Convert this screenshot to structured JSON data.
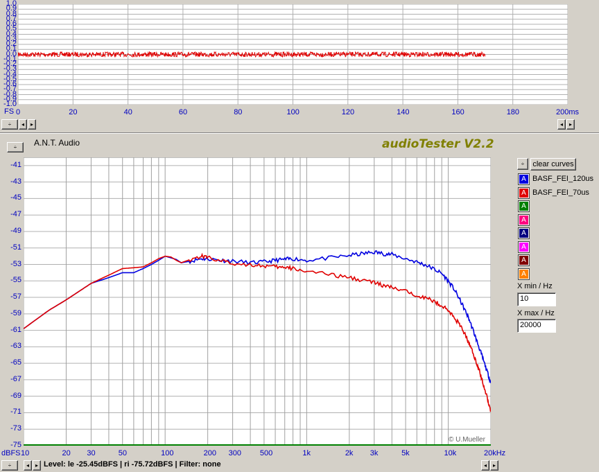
{
  "scope": {
    "y_ticks": [
      "1.0",
      "0.9",
      "0.8",
      "0.7",
      "0.6",
      "0.5",
      "0.4",
      "0.3",
      "0.2",
      "0.1",
      "0.0",
      "-0.1",
      "-0.2",
      "-0.3",
      "-0.4",
      "-0.5",
      "-0.6",
      "-0.7",
      "-0.8",
      "-0.9",
      "-1.0"
    ],
    "x_ticks": [
      "0",
      "20",
      "40",
      "60",
      "80",
      "100",
      "120",
      "140",
      "160",
      "180"
    ],
    "x_unit_label": "200ms",
    "y_unit_label": "FS",
    "trace_color": "#e00000",
    "trace_end_ms": 170
  },
  "header": {
    "device_label": "A.N.T. Audio",
    "brand": "audioTester V2.2"
  },
  "chart_data": {
    "type": "line",
    "x_scale": "log",
    "xlim": [
      10,
      20000
    ],
    "ylim": [
      -75,
      -40
    ],
    "xlabel": "kHz",
    "ylabel": "dBFS",
    "y_ticks": [
      "-41",
      "-43",
      "-45",
      "-47",
      "-49",
      "-51",
      "-53",
      "-55",
      "-57",
      "-59",
      "-61",
      "-63",
      "-65",
      "-67",
      "-69",
      "-71",
      "-73",
      "-75"
    ],
    "x_ticks": [
      "10",
      "20",
      "30",
      "50",
      "100",
      "200",
      "300",
      "500",
      "1k",
      "2k",
      "3k",
      "5k",
      "10k",
      "20kHz"
    ],
    "x_tick_values": [
      10,
      20,
      30,
      50,
      100,
      200,
      300,
      500,
      1000,
      2000,
      3000,
      5000,
      10000,
      20000
    ],
    "grid": true,
    "series": [
      {
        "name": "BASF_FEI_120us",
        "color": "#0000e0",
        "x": [
          10,
          15,
          20,
          25,
          30,
          40,
          50,
          60,
          70,
          80,
          90,
          100,
          110,
          120,
          130,
          150,
          180,
          200,
          250,
          300,
          400,
          500,
          600,
          700,
          800,
          1000,
          1500,
          2000,
          2500,
          3000,
          3500,
          4000,
          5000,
          6000,
          7000,
          8000,
          9000,
          10000,
          11000,
          12000,
          13000,
          14000,
          15000,
          16000,
          17000,
          18000,
          19000,
          20000
        ],
        "y": [
          -60.8,
          -58.6,
          -57.3,
          -56.2,
          -55.3,
          -54.6,
          -54.0,
          -54.0,
          -53.5,
          -53.0,
          -52.5,
          -52.0,
          -52.2,
          -52.4,
          -52.8,
          -52.6,
          -52.3,
          -52.3,
          -52.5,
          -52.6,
          -52.8,
          -52.7,
          -52.5,
          -52.4,
          -52.3,
          -52.5,
          -52.2,
          -51.9,
          -51.7,
          -51.5,
          -51.7,
          -51.8,
          -52.3,
          -52.7,
          -53.1,
          -53.6,
          -54.1,
          -55.0,
          -56.0,
          -57.2,
          -58.4,
          -59.6,
          -61.0,
          -62.4,
          -63.7,
          -65.0,
          -66.2,
          -67.4
        ]
      },
      {
        "name": "BASF_FEI_70us",
        "color": "#e00000",
        "x": [
          10,
          15,
          20,
          25,
          30,
          40,
          50,
          60,
          70,
          80,
          90,
          100,
          110,
          120,
          130,
          150,
          180,
          200,
          250,
          300,
          400,
          500,
          600,
          700,
          800,
          1000,
          1500,
          2000,
          2500,
          3000,
          3500,
          4000,
          5000,
          6000,
          7000,
          8000,
          9000,
          10000,
          11000,
          12000,
          13000,
          14000,
          15000,
          16000,
          17000,
          18000,
          19000,
          20000
        ],
        "y": [
          -60.8,
          -58.6,
          -57.3,
          -56.2,
          -55.3,
          -54.3,
          -53.5,
          -53.4,
          -53.3,
          -52.8,
          -52.3,
          -52.0,
          -52.1,
          -52.5,
          -52.8,
          -52.4,
          -52.0,
          -52.1,
          -52.6,
          -52.9,
          -53.0,
          -53.2,
          -53.3,
          -53.4,
          -53.5,
          -53.8,
          -54.3,
          -54.6,
          -54.9,
          -55.2,
          -55.6,
          -55.8,
          -56.3,
          -56.7,
          -57.1,
          -57.5,
          -58.0,
          -58.6,
          -59.4,
          -60.3,
          -61.3,
          -62.5,
          -63.8,
          -65.1,
          -66.5,
          -68.0,
          -69.4,
          -70.8
        ]
      }
    ]
  },
  "legend": {
    "clear_label": "clear curves",
    "slots": [
      {
        "name": "BASF_FEI_120us",
        "color": "#0000e0"
      },
      {
        "name": "BASF_FEI_70us",
        "color": "#e00000"
      },
      {
        "name": "",
        "color": "#008000"
      },
      {
        "name": "",
        "color": "#ff0080"
      },
      {
        "name": "",
        "color": "#000080"
      },
      {
        "name": "",
        "color": "#ff00ff"
      },
      {
        "name": "",
        "color": "#800000"
      },
      {
        "name": "",
        "color": "#ff8000"
      }
    ],
    "slot_glyph": "A"
  },
  "xrange": {
    "min_label": "X min / Hz",
    "min_value": "10",
    "max_label": "X max / Hz",
    "max_value": "20000"
  },
  "status": {
    "text": "Level: le -25.45dBFS | ri -75.72dBFS | Filter: none",
    "copyright": "© U.Mueller"
  },
  "arrows": {
    "left": "◂",
    "right": "▸",
    "updown": "÷"
  }
}
